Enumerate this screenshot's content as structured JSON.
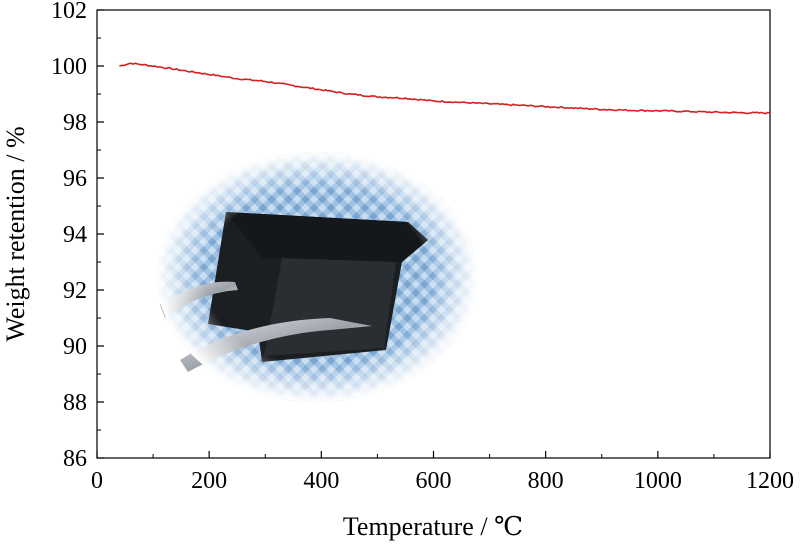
{
  "chart_data": {
    "type": "line",
    "xlabel": "Temperature / ℃",
    "ylabel": "Weight retention / %",
    "xlim": [
      0,
      1200
    ],
    "ylim": [
      86,
      102
    ],
    "xticks": [
      0,
      200,
      400,
      600,
      800,
      1000,
      1200
    ],
    "yticks": [
      86,
      88,
      90,
      92,
      94,
      96,
      98,
      100,
      102
    ],
    "x_tick_labels": [
      "0",
      "200",
      "400",
      "600",
      "800",
      "1000",
      "1200"
    ],
    "y_tick_labels": [
      "86",
      "88",
      "90",
      "92",
      "94",
      "96",
      "98",
      "100",
      "102"
    ],
    "grid": false,
    "series": [
      {
        "color": "#d62020",
        "x": [
          40,
          60,
          80,
          100,
          150,
          200,
          250,
          300,
          350,
          400,
          450,
          500,
          550,
          600,
          650,
          700,
          750,
          800,
          850,
          900,
          950,
          1000,
          1050,
          1100,
          1150,
          1200
        ],
        "y": [
          100.0,
          100.1,
          100.05,
          100.0,
          99.85,
          99.7,
          99.55,
          99.45,
          99.3,
          99.15,
          99.0,
          98.9,
          98.85,
          98.75,
          98.7,
          98.65,
          98.6,
          98.55,
          98.5,
          98.45,
          98.42,
          98.4,
          98.38,
          98.35,
          98.33,
          98.32
        ]
      }
    ]
  },
  "inset_photo": {
    "name": "sample-photo",
    "background_color": "#8fb4d8",
    "sample_color": "#1c1f22",
    "tweezers_color": "#c9ccd0"
  }
}
